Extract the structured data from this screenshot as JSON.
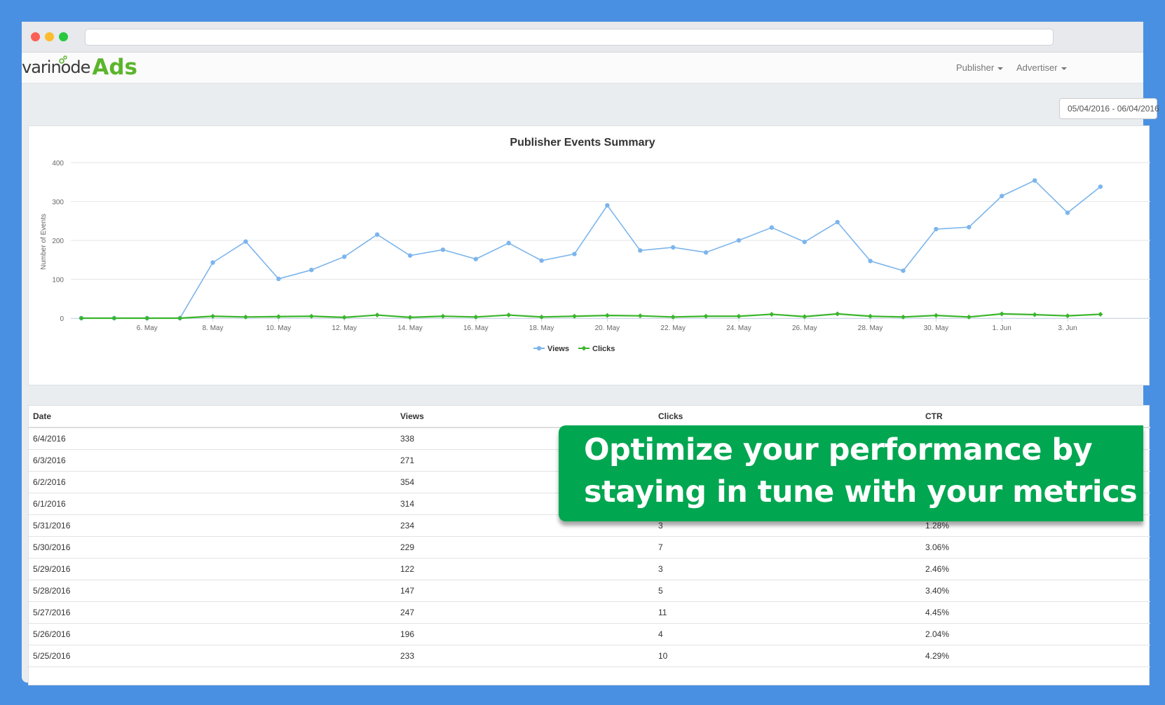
{
  "app": {
    "logo_word": "varinode",
    "logo_ads": "Ads",
    "nav": {
      "publisher": "Publisher",
      "advertiser": "Advertiser"
    },
    "date_range": "05/04/2016 - 06/04/2016"
  },
  "chart_data": {
    "type": "line",
    "title": "Publisher Events Summary",
    "xlabel": "",
    "ylabel": "Number of Events",
    "ylim": [
      0,
      400
    ],
    "yticks": [
      "0",
      "100",
      "200",
      "300",
      "400"
    ],
    "tick_labels": [
      "6. May",
      "8. May",
      "10. May",
      "12. May",
      "14. May",
      "16. May",
      "18. May",
      "20. May",
      "22. May",
      "24. May",
      "26. May",
      "28. May",
      "30. May",
      "1. Jun",
      "3. Jun"
    ],
    "x": [
      "5/4",
      "5/5",
      "5/6",
      "5/7",
      "5/8",
      "5/9",
      "5/10",
      "5/11",
      "5/12",
      "5/13",
      "5/14",
      "5/15",
      "5/16",
      "5/17",
      "5/18",
      "5/19",
      "5/20",
      "5/21",
      "5/22",
      "5/23",
      "5/24",
      "5/25",
      "5/26",
      "5/27",
      "5/28",
      "5/29",
      "5/30",
      "5/31",
      "6/1",
      "6/2",
      "6/3",
      "6/4"
    ],
    "legend_position": "bottom-center",
    "grid": true,
    "series": [
      {
        "name": "Views",
        "color": "#7cb5ec",
        "values": [
          0,
          0,
          0,
          0,
          143,
          197,
          101,
          124,
          158,
          215,
          161,
          176,
          152,
          193,
          148,
          165,
          290,
          174,
          182,
          169,
          200,
          233,
          196,
          247,
          147,
          122,
          229,
          234,
          314,
          354,
          271,
          338
        ]
      },
      {
        "name": "Clicks",
        "color": "#3ab52c",
        "values": [
          0,
          0,
          0,
          0,
          5,
          3,
          4,
          5,
          2,
          8,
          2,
          5,
          3,
          8,
          3,
          5,
          7,
          6,
          3,
          5,
          5,
          10,
          4,
          11,
          5,
          3,
          7,
          3,
          11,
          9,
          6,
          10
        ]
      }
    ]
  },
  "table": {
    "headers": [
      "Date",
      "Views",
      "Clicks",
      "CTR"
    ],
    "rows": [
      [
        "6/4/2016",
        "338",
        "",
        ""
      ],
      [
        "6/3/2016",
        "271",
        "",
        ""
      ],
      [
        "6/2/2016",
        "354",
        "",
        ""
      ],
      [
        "6/1/2016",
        "314",
        "",
        ""
      ],
      [
        "5/31/2016",
        "234",
        "3",
        "1.28%"
      ],
      [
        "5/30/2016",
        "229",
        "7",
        "3.06%"
      ],
      [
        "5/29/2016",
        "122",
        "3",
        "2.46%"
      ],
      [
        "5/28/2016",
        "147",
        "5",
        "3.40%"
      ],
      [
        "5/27/2016",
        "247",
        "11",
        "4.45%"
      ],
      [
        "5/26/2016",
        "196",
        "4",
        "2.04%"
      ],
      [
        "5/25/2016",
        "233",
        "10",
        "4.29%"
      ]
    ]
  },
  "promo": {
    "line1": "Optimize your performance by",
    "line2": "staying in tune with your metrics"
  }
}
